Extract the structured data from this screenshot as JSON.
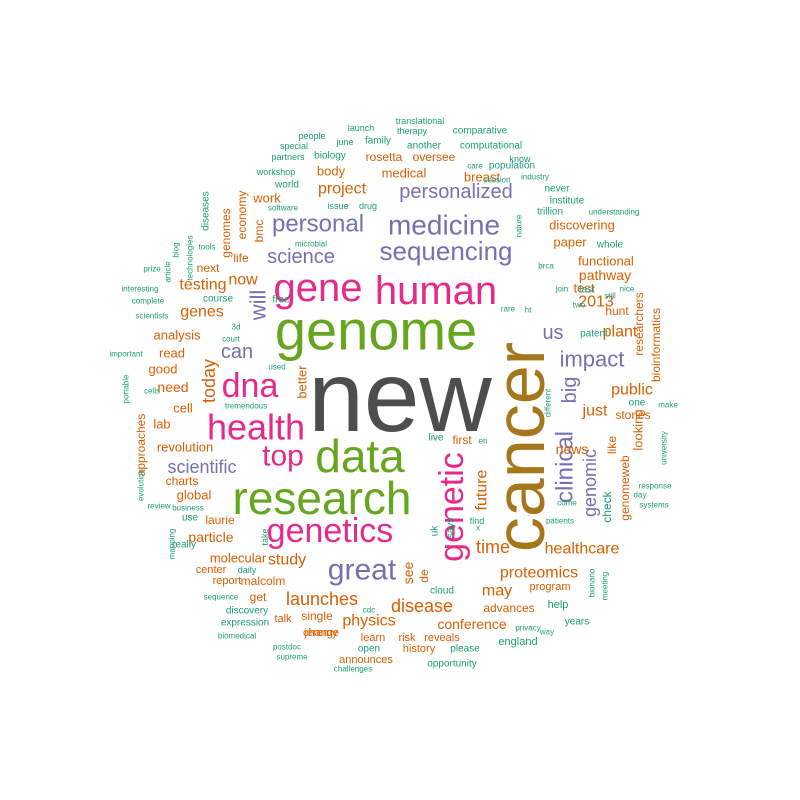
{
  "palette": {
    "gray": "#4d4d4d",
    "brown": "#a6761d",
    "green": "#66a61e",
    "pink": "#e7298a",
    "purple": "#7570b3",
    "orange": "#d95f02",
    "teal": "#1b9e77"
  },
  "words": [
    {
      "text": "new",
      "weight": 100,
      "color": "gray"
    },
    {
      "text": "cancer",
      "weight": 62,
      "color": "brown"
    },
    {
      "text": "genome",
      "weight": 55,
      "color": "green"
    },
    {
      "text": "data",
      "weight": 45,
      "color": "green"
    },
    {
      "text": "research",
      "weight": 44,
      "color": "green"
    },
    {
      "text": "human",
      "weight": 40,
      "color": "pink"
    },
    {
      "text": "gene",
      "weight": 38,
      "color": "pink"
    },
    {
      "text": "health",
      "weight": 36,
      "color": "pink"
    },
    {
      "text": "genetics",
      "weight": 35,
      "color": "pink"
    },
    {
      "text": "dna",
      "weight": 35,
      "color": "pink"
    },
    {
      "text": "genetic",
      "weight": 35,
      "color": "pink"
    },
    {
      "text": "top",
      "weight": 30,
      "color": "pink"
    },
    {
      "text": "great",
      "weight": 28,
      "color": "purple"
    },
    {
      "text": "medicine",
      "weight": 27,
      "color": "purple"
    },
    {
      "text": "sequencing",
      "weight": 26,
      "color": "purple"
    },
    {
      "text": "personal",
      "weight": 24,
      "color": "purple"
    },
    {
      "text": "clinical",
      "weight": 24,
      "color": "purple"
    },
    {
      "text": "personalized",
      "weight": 22,
      "color": "purple"
    },
    {
      "text": "impact",
      "weight": 22,
      "color": "purple"
    },
    {
      "text": "will",
      "weight": 22,
      "color": "purple"
    },
    {
      "text": "science",
      "weight": 21,
      "color": "purple"
    },
    {
      "text": "can",
      "weight": 20,
      "color": "purple"
    },
    {
      "text": "scientific",
      "weight": 20,
      "color": "purple"
    },
    {
      "text": "big",
      "weight": 20,
      "color": "purple"
    },
    {
      "text": "us",
      "weight": 20,
      "color": "purple"
    },
    {
      "text": "genomic",
      "weight": 19,
      "color": "purple"
    },
    {
      "text": "launches",
      "weight": 19,
      "color": "orange"
    },
    {
      "text": "disease",
      "weight": 19,
      "color": "orange"
    },
    {
      "text": "proteomics",
      "weight": 18,
      "color": "orange"
    },
    {
      "text": "healthcare",
      "weight": 17,
      "color": "orange"
    },
    {
      "text": "today",
      "weight": 17,
      "color": "orange"
    },
    {
      "text": "time",
      "weight": 17,
      "color": "orange"
    },
    {
      "text": "study",
      "weight": 17,
      "color": "orange"
    },
    {
      "text": "project",
      "weight": 16,
      "color": "orange"
    },
    {
      "text": "testing",
      "weight": 16,
      "color": "orange"
    },
    {
      "text": "genes",
      "weight": 16,
      "color": "orange"
    },
    {
      "text": "physics",
      "weight": 16,
      "color": "orange"
    },
    {
      "text": "now",
      "weight": 16,
      "color": "orange"
    },
    {
      "text": "public",
      "weight": 16,
      "color": "orange"
    },
    {
      "text": "just",
      "weight": 16,
      "color": "orange"
    },
    {
      "text": "may",
      "weight": 16,
      "color": "orange"
    },
    {
      "text": "future",
      "weight": 16,
      "color": "orange"
    },
    {
      "text": "2013",
      "weight": 16,
      "color": "orange"
    },
    {
      "text": "plant",
      "weight": 16,
      "color": "orange"
    },
    {
      "text": "particle",
      "weight": 15,
      "color": "orange"
    },
    {
      "text": "conference",
      "weight": 15,
      "color": "orange"
    },
    {
      "text": "need",
      "weight": 15,
      "color": "orange"
    },
    {
      "text": "news",
      "weight": 15,
      "color": "orange"
    },
    {
      "text": "see",
      "weight": 15,
      "color": "orange"
    },
    {
      "text": "pathway",
      "weight": 15,
      "color": "orange"
    },
    {
      "text": "better",
      "weight": 14,
      "color": "orange"
    },
    {
      "text": "revolution",
      "weight": 14,
      "color": "orange"
    },
    {
      "text": "functional",
      "weight": 14,
      "color": "orange"
    },
    {
      "text": "discovering",
      "weight": 14,
      "color": "orange"
    },
    {
      "text": "looking",
      "weight": 14,
      "color": "orange"
    },
    {
      "text": "analysis",
      "weight": 14,
      "color": "orange"
    },
    {
      "text": "molecular",
      "weight": 14,
      "color": "orange"
    },
    {
      "text": "global",
      "weight": 14,
      "color": "orange"
    },
    {
      "text": "work",
      "weight": 14,
      "color": "orange"
    },
    {
      "text": "test",
      "weight": 14,
      "color": "orange"
    },
    {
      "text": "paper",
      "weight": 14,
      "color": "orange"
    },
    {
      "text": "breast",
      "weight": 14,
      "color": "orange"
    },
    {
      "text": "body",
      "weight": 14,
      "color": "orange"
    },
    {
      "text": "medical",
      "weight": 14,
      "color": "orange"
    },
    {
      "text": "cell",
      "weight": 13,
      "color": "orange"
    },
    {
      "text": "good",
      "weight": 13,
      "color": "orange"
    },
    {
      "text": "read",
      "weight": 13,
      "color": "orange"
    },
    {
      "text": "lab",
      "weight": 13,
      "color": "orange"
    },
    {
      "text": "charts",
      "weight": 13,
      "color": "orange"
    },
    {
      "text": "stories",
      "weight": 13,
      "color": "orange"
    },
    {
      "text": "like",
      "weight": 13,
      "color": "orange"
    },
    {
      "text": "check",
      "weight": 13,
      "color": "teal"
    },
    {
      "text": "genomeweb",
      "weight": 13,
      "color": "orange"
    },
    {
      "text": "advances",
      "weight": 13,
      "color": "orange"
    },
    {
      "text": "first",
      "weight": 13,
      "color": "orange"
    },
    {
      "text": "de",
      "weight": 13,
      "color": "orange"
    },
    {
      "text": "single",
      "weight": 13,
      "color": "orange"
    },
    {
      "text": "malcolm",
      "weight": 13,
      "color": "orange"
    },
    {
      "text": "laurie",
      "weight": 13,
      "color": "orange"
    },
    {
      "text": "get",
      "weight": 12,
      "color": "orange"
    },
    {
      "text": "next",
      "weight": 12,
      "color": "orange"
    },
    {
      "text": "life",
      "weight": 12,
      "color": "orange"
    },
    {
      "text": "rosetta",
      "weight": 12,
      "color": "orange"
    },
    {
      "text": "oversee",
      "weight": 12,
      "color": "orange"
    },
    {
      "text": "researchers",
      "weight": 12,
      "color": "orange"
    },
    {
      "text": "bioinformatics",
      "weight": 12,
      "color": "orange"
    },
    {
      "text": "hunt",
      "weight": 12,
      "color": "orange"
    },
    {
      "text": "genomes",
      "weight": 12,
      "color": "orange"
    },
    {
      "text": "economy",
      "weight": 12,
      "color": "orange"
    },
    {
      "text": "bmc",
      "weight": 12,
      "color": "orange"
    },
    {
      "text": "approaches",
      "weight": 12,
      "color": "orange"
    },
    {
      "text": "uk",
      "weight": 11,
      "color": "teal"
    },
    {
      "text": "says",
      "weight": 11,
      "color": "teal"
    },
    {
      "text": "report",
      "weight": 11,
      "color": "orange"
    },
    {
      "text": "center",
      "weight": 11,
      "color": "orange"
    },
    {
      "text": "talk",
      "weight": 11,
      "color": "orange"
    },
    {
      "text": "jeremy",
      "weight": 11,
      "color": "orange"
    },
    {
      "text": "announces",
      "weight": 11,
      "color": "orange"
    },
    {
      "text": "history",
      "weight": 11,
      "color": "orange"
    },
    {
      "text": "risk",
      "weight": 11,
      "color": "orange"
    },
    {
      "text": "reveals",
      "weight": 11,
      "color": "orange"
    },
    {
      "text": "learn",
      "weight": 11,
      "color": "orange"
    },
    {
      "text": "change",
      "weight": 11,
      "color": "orange"
    },
    {
      "text": "program",
      "weight": 11,
      "color": "orange"
    },
    {
      "text": "help",
      "weight": 11,
      "color": "teal"
    },
    {
      "text": "england",
      "weight": 11,
      "color": "teal"
    },
    {
      "text": "years",
      "weight": 10,
      "color": "teal"
    },
    {
      "text": "please",
      "weight": 10,
      "color": "teal"
    },
    {
      "text": "opportunity",
      "weight": 10,
      "color": "teal"
    },
    {
      "text": "open",
      "weight": 10,
      "color": "teal"
    },
    {
      "text": "expression",
      "weight": 10,
      "color": "teal"
    },
    {
      "text": "discovery",
      "weight": 10,
      "color": "teal"
    },
    {
      "text": "population",
      "weight": 10,
      "color": "teal"
    },
    {
      "text": "computational",
      "weight": 10,
      "color": "teal"
    },
    {
      "text": "comparative",
      "weight": 10,
      "color": "teal"
    },
    {
      "text": "family",
      "weight": 10,
      "color": "teal"
    },
    {
      "text": "another",
      "weight": 10,
      "color": "teal"
    },
    {
      "text": "biology",
      "weight": 10,
      "color": "teal"
    },
    {
      "text": "world",
      "weight": 10,
      "color": "teal"
    },
    {
      "text": "institute",
      "weight": 10,
      "color": "teal"
    },
    {
      "text": "trillion",
      "weight": 10,
      "color": "teal"
    },
    {
      "text": "never",
      "weight": 10,
      "color": "teal"
    },
    {
      "text": "whole",
      "weight": 10,
      "color": "teal"
    },
    {
      "text": "last",
      "weight": 10,
      "color": "teal"
    },
    {
      "text": "patent",
      "weight": 10,
      "color": "teal"
    },
    {
      "text": "one",
      "weight": 10,
      "color": "teal"
    },
    {
      "text": "cloud",
      "weight": 10,
      "color": "teal"
    },
    {
      "text": "free",
      "weight": 10,
      "color": "teal"
    },
    {
      "text": "course",
      "weight": 10,
      "color": "teal"
    },
    {
      "text": "use",
      "weight": 10,
      "color": "teal"
    },
    {
      "text": "really",
      "weight": 10,
      "color": "teal"
    },
    {
      "text": "diseases",
      "weight": 10,
      "color": "teal"
    },
    {
      "text": "live",
      "weight": 10,
      "color": "teal"
    },
    {
      "text": "find",
      "weight": 9,
      "color": "teal"
    },
    {
      "text": "take",
      "weight": 9,
      "color": "teal"
    },
    {
      "text": "daily",
      "weight": 9,
      "color": "teal"
    },
    {
      "text": "workshop",
      "weight": 9,
      "color": "teal"
    },
    {
      "text": "therapy",
      "weight": 9,
      "color": "teal"
    },
    {
      "text": "launch",
      "weight": 9,
      "color": "teal"
    },
    {
      "text": "june",
      "weight": 9,
      "color": "teal"
    },
    {
      "text": "people",
      "weight": 9,
      "color": "teal"
    },
    {
      "text": "special",
      "weight": 9,
      "color": "teal"
    },
    {
      "text": "partners",
      "weight": 9,
      "color": "teal"
    },
    {
      "text": "translational",
      "weight": 9,
      "color": "teal"
    },
    {
      "text": "know",
      "weight": 9,
      "color": "teal"
    },
    {
      "text": "care",
      "weight": 8,
      "color": "teal"
    },
    {
      "text": "session",
      "weight": 8,
      "color": "teal"
    },
    {
      "text": "industry",
      "weight": 8,
      "color": "teal"
    },
    {
      "text": "software",
      "weight": 8,
      "color": "teal"
    },
    {
      "text": "issue",
      "weight": 9,
      "color": "teal"
    },
    {
      "text": "drug",
      "weight": 9,
      "color": "teal"
    },
    {
      "text": "nature",
      "weight": 8,
      "color": "teal"
    },
    {
      "text": "understanding",
      "weight": 8,
      "color": "teal"
    },
    {
      "text": "brca",
      "weight": 8,
      "color": "teal"
    },
    {
      "text": "join",
      "weight": 8,
      "color": "teal"
    },
    {
      "text": "still",
      "weight": 8,
      "color": "teal"
    },
    {
      "text": "nice",
      "weight": 8,
      "color": "teal"
    },
    {
      "text": "rare",
      "weight": 8,
      "color": "teal"
    },
    {
      "text": "ht",
      "weight": 8,
      "color": "teal"
    },
    {
      "text": "two",
      "weight": 8,
      "color": "teal"
    },
    {
      "text": "microbial",
      "weight": 8,
      "color": "teal"
    },
    {
      "text": "tools",
      "weight": 8,
      "color": "teal"
    },
    {
      "text": "blog",
      "weight": 8,
      "color": "teal"
    },
    {
      "text": "technologies",
      "weight": 8,
      "color": "teal"
    },
    {
      "text": "prize",
      "weight": 8,
      "color": "teal"
    },
    {
      "text": "interesting",
      "weight": 8,
      "color": "teal"
    },
    {
      "text": "complete",
      "weight": 8,
      "color": "teal"
    },
    {
      "text": "scientists",
      "weight": 8,
      "color": "teal"
    },
    {
      "text": "important",
      "weight": 8,
      "color": "teal"
    },
    {
      "text": "3d",
      "weight": 8,
      "color": "teal"
    },
    {
      "text": "court",
      "weight": 8,
      "color": "teal"
    },
    {
      "text": "used",
      "weight": 8,
      "color": "teal"
    },
    {
      "text": "tremendous",
      "weight": 8,
      "color": "teal"
    },
    {
      "text": "portable",
      "weight": 8,
      "color": "teal"
    },
    {
      "text": "cells",
      "weight": 8,
      "color": "teal"
    },
    {
      "text": "evolution",
      "weight": 8,
      "color": "teal"
    },
    {
      "text": "review",
      "weight": 8,
      "color": "teal"
    },
    {
      "text": "business",
      "weight": 8,
      "color": "teal"
    },
    {
      "text": "mapping",
      "weight": 8,
      "color": "teal"
    },
    {
      "text": "sequence",
      "weight": 8,
      "color": "teal"
    },
    {
      "text": "biomedical",
      "weight": 8,
      "color": "teal"
    },
    {
      "text": "postdoc",
      "weight": 8,
      "color": "teal"
    },
    {
      "text": "supreme",
      "weight": 8,
      "color": "teal"
    },
    {
      "text": "challenges",
      "weight": 8,
      "color": "teal"
    },
    {
      "text": "cdc",
      "weight": 8,
      "color": "teal"
    },
    {
      "text": "privacy",
      "weight": 8,
      "color": "teal"
    },
    {
      "text": "way",
      "weight": 8,
      "color": "teal"
    },
    {
      "text": "patients",
      "weight": 8,
      "color": "teal"
    },
    {
      "text": "bionano",
      "weight": 8,
      "color": "teal"
    },
    {
      "text": "meeting",
      "weight": 8,
      "color": "teal"
    },
    {
      "text": "come",
      "weight": 8,
      "color": "teal"
    },
    {
      "text": "systems",
      "weight": 8,
      "color": "teal"
    },
    {
      "text": "day",
      "weight": 8,
      "color": "teal"
    },
    {
      "text": "response",
      "weight": 8,
      "color": "teal"
    },
    {
      "text": "university",
      "weight": 8,
      "color": "teal"
    },
    {
      "text": "make",
      "weight": 8,
      "color": "teal"
    },
    {
      "text": "different",
      "weight": 8,
      "color": "teal"
    },
    {
      "text": "en",
      "weight": 8,
      "color": "teal"
    },
    {
      "text": "x",
      "weight": 8,
      "color": "teal"
    },
    {
      "text": "article",
      "weight": 8,
      "color": "teal"
    }
  ]
}
